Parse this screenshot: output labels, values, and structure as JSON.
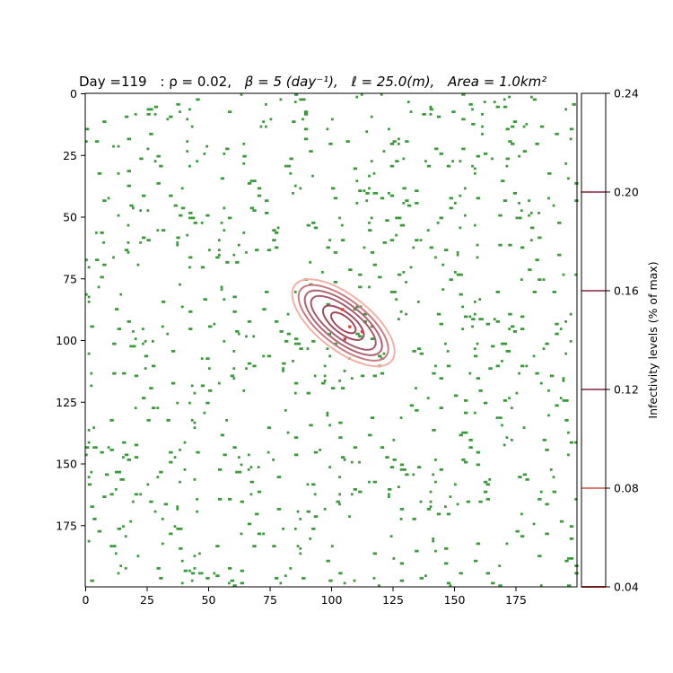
{
  "chart_data": {
    "type": "heatmap",
    "title": {
      "day_label": "Day =119",
      "rho": ": ρ = 0.02,",
      "beta": "β = 5 (day⁻¹),",
      "ell": "ℓ = 25.0(m),",
      "area": "Area = 1.0km²"
    },
    "grid_size": 200,
    "xlim": [
      0,
      200
    ],
    "ylim": [
      200,
      0
    ],
    "x_ticks": [
      0,
      25,
      50,
      75,
      100,
      125,
      150,
      175
    ],
    "y_ticks": [
      0,
      25,
      50,
      75,
      100,
      125,
      150,
      175
    ],
    "x_tick_labels": [
      "0",
      "25",
      "50",
      "75",
      "100",
      "125",
      "150",
      "175"
    ],
    "y_tick_labels": [
      "0",
      "25",
      "50",
      "75",
      "100",
      "125",
      "150",
      "175"
    ],
    "population_density": 0.02,
    "population_color": "#3a9a3a",
    "infected_points": [
      [
        104,
        87
      ],
      [
        107,
        94
      ],
      [
        112,
        96
      ],
      [
        105,
        99
      ]
    ],
    "infected_color": "#d9413a",
    "contour_center": [
      105,
      93
    ],
    "contour_angle_deg": 38,
    "contours": [
      {
        "level": 0.04,
        "a": 25,
        "b": 11,
        "color": "#f2b1a3"
      },
      {
        "level": 0.08,
        "a": 22,
        "b": 9.2,
        "color": "#c97a82"
      },
      {
        "level": 0.12,
        "a": 19,
        "b": 7.6,
        "color": "#b06473"
      },
      {
        "level": 0.16,
        "a": 16,
        "b": 6.0,
        "color": "#a55a6b"
      },
      {
        "level": 0.2,
        "a": 10,
        "b": 4.2,
        "color": "#9c4c60"
      },
      {
        "level": 0.2,
        "a": 6,
        "b": 2.6,
        "color": "#a04a5c"
      }
    ],
    "colorbar": {
      "label": "Infectivity levels   (% of max)",
      "range": [
        0.04,
        0.24
      ],
      "tick_values": [
        0.04,
        0.08,
        0.12,
        0.16,
        0.2,
        0.24
      ],
      "tick_labels": [
        "0.04",
        "0.08",
        "0.12",
        "0.16",
        "0.20",
        "0.24"
      ],
      "lines": [
        {
          "value": 0.04,
          "color": "#d9413a"
        },
        {
          "value": 0.08,
          "color": "#e07a6e"
        },
        {
          "value": 0.12,
          "color": "#a55a6b"
        },
        {
          "value": 0.16,
          "color": "#a55a6b"
        },
        {
          "value": 0.2,
          "color": "#a55a6b"
        }
      ]
    }
  }
}
